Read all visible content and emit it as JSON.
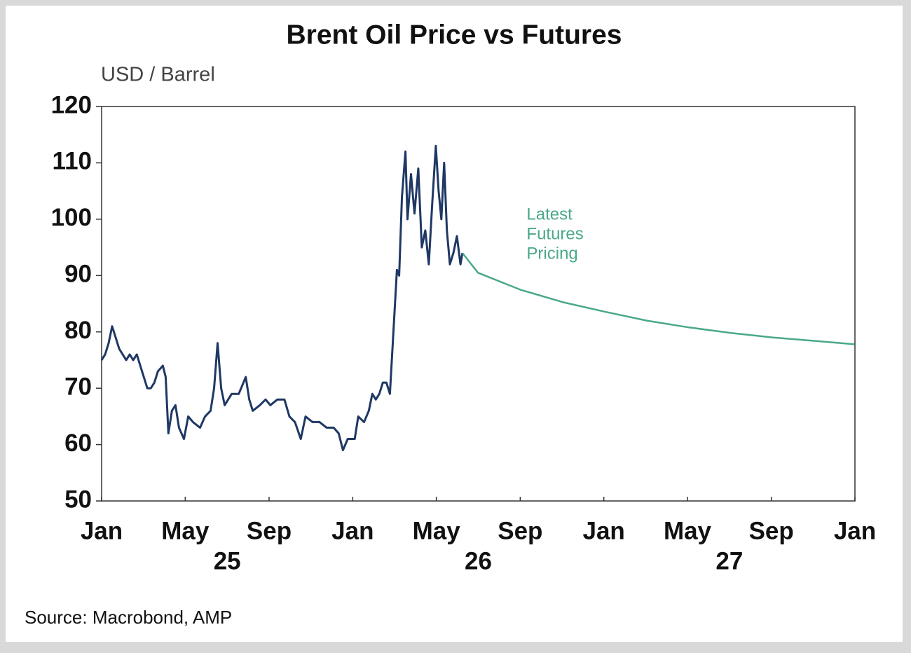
{
  "chart_data": {
    "type": "line",
    "title": "Brent Oil Price vs Futures",
    "y_label": "USD / Barrel",
    "source": "Source: Macrobond, AMP",
    "annotation": {
      "lines": [
        "Latest",
        "Futures",
        "Pricing"
      ],
      "x": 2026.67,
      "y": 90,
      "color": "#4aa88a"
    },
    "xlim": [
      2025,
      2028
    ],
    "ylim": [
      50,
      120
    ],
    "yticks": [
      50,
      60,
      70,
      80,
      90,
      100,
      110,
      120
    ],
    "xticks": [
      {
        "value": 2025,
        "label": "Jan"
      },
      {
        "value": 2025.333,
        "label": "May"
      },
      {
        "value": 2025.667,
        "label": "Sep"
      },
      {
        "value": 2026,
        "label": "Jan"
      },
      {
        "value": 2026.333,
        "label": "May"
      },
      {
        "value": 2026.667,
        "label": "Sep"
      },
      {
        "value": 2027,
        "label": "Jan"
      },
      {
        "value": 2027.333,
        "label": "May"
      },
      {
        "value": 2027.667,
        "label": "Sep"
      },
      {
        "value": 2028,
        "label": "Jan"
      }
    ],
    "year_labels": [
      {
        "value": 2025.5,
        "label": "25"
      },
      {
        "value": 2026.5,
        "label": "26"
      },
      {
        "value": 2027.5,
        "label": "27"
      }
    ],
    "grid": false,
    "series": [
      {
        "color": "#1f3864",
        "x": [
          2025,
          2025.014,
          2025.028,
          2025.042,
          2025.056,
          2025.07,
          2025.084,
          2025.098,
          2025.112,
          2025.126,
          2025.14,
          2025.154,
          2025.168,
          2025.182,
          2025.196,
          2025.21,
          2025.224,
          2025.244,
          2025.255,
          2025.266,
          2025.28,
          2025.294,
          2025.308,
          2025.328,
          2025.345,
          2025.364,
          2025.392,
          2025.412,
          2025.434,
          2025.448,
          2025.462,
          2025.476,
          2025.49,
          2025.504,
          2025.518,
          2025.546,
          2025.574,
          2025.588,
          2025.602,
          2025.63,
          2025.653,
          2025.672,
          2025.7,
          2025.728,
          2025.748,
          2025.77,
          2025.793,
          2025.812,
          2025.84,
          2025.868,
          2025.896,
          2025.924,
          2025.944,
          2025.961,
          2025.98,
          2026.008,
          2026.022,
          2026.045,
          2026.064,
          2026.078,
          2026.092,
          2026.106,
          2026.12,
          2026.134,
          2026.148,
          2026.162,
          2026.176,
          2026.185,
          2026.196,
          2026.21,
          2026.218,
          2026.232,
          2026.246,
          2026.261,
          2026.275,
          2026.289,
          2026.303,
          2026.317,
          2026.331,
          2026.342,
          2026.353,
          2026.364,
          2026.375,
          2026.387,
          2026.401,
          2026.415,
          2026.429,
          2026.437
        ],
        "values": [
          75,
          76,
          78,
          81,
          79,
          77,
          76,
          75,
          76,
          75,
          76,
          74,
          72,
          70,
          70,
          71,
          73,
          74,
          72,
          62,
          66,
          67,
          63,
          61,
          65,
          64,
          63,
          65,
          66,
          70,
          78,
          70,
          67,
          68,
          69,
          69,
          72,
          68,
          66,
          67,
          68,
          67,
          68,
          68,
          65,
          64,
          61,
          65,
          64,
          64,
          63,
          63,
          62,
          59,
          61,
          61,
          65,
          64,
          66,
          69,
          68,
          69,
          71,
          71,
          69,
          80,
          91,
          90,
          104,
          112,
          100,
          108,
          101,
          109,
          95,
          98,
          92,
          103,
          113,
          105,
          100,
          110,
          98,
          92,
          94,
          97,
          92,
          94
        ]
      },
      {
        "color": "#4aa88a",
        "x": [
          2026.437,
          2026.499,
          2026.667,
          2026.835,
          2027.003,
          2027.171,
          2027.339,
          2027.507,
          2027.675,
          2027.843,
          2027.998
        ],
        "values": [
          94,
          90.5,
          87.5,
          85.3,
          83.6,
          82,
          80.8,
          79.8,
          79,
          78.4,
          77.8
        ]
      }
    ]
  }
}
